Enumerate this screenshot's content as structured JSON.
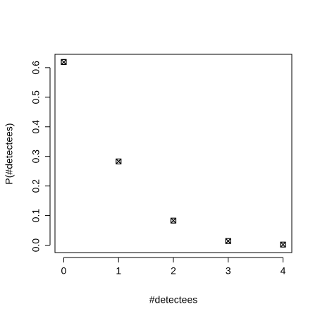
{
  "chart_data": {
    "type": "scatter",
    "x_label": "#detectees",
    "y_label": "P(#detectees)",
    "x": [
      0,
      1,
      2,
      3,
      4
    ],
    "values": [
      0.619,
      0.283,
      0.083,
      0.014,
      0.002
    ],
    "color": "#000000",
    "marker": "square-cross",
    "xlim": [
      -0.16,
      4.16
    ],
    "ylim": [
      -0.025,
      0.645
    ],
    "xticks": [
      0,
      1,
      2,
      3,
      4
    ],
    "yticks": [
      {
        "value": 0,
        "label": "0.0"
      },
      0.1,
      0.2,
      0.3,
      0.4,
      0.5,
      0.6
    ]
  }
}
